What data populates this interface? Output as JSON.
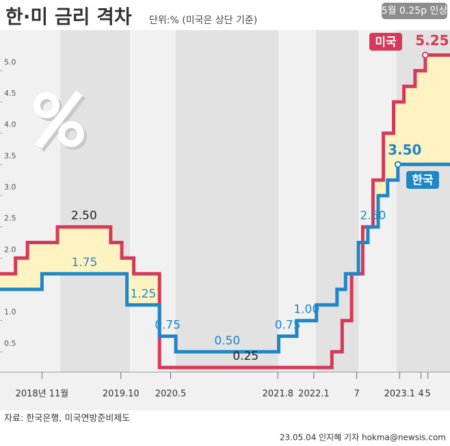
{
  "chart_data": {
    "type": "step",
    "title": "한·미 금리 격차",
    "subtitle": "단위:% (미국은 상단 기준)",
    "annotation": "5월 0.25p 인상",
    "source": "자료: 한국은행, 미국연방준비제도",
    "credit": "23.05.04 인지혜 기자 hokma@newsis.com",
    "xlim": [
      2018.34,
      2023.46
    ],
    "xticks": [
      {
        "value": 2018.83,
        "label": "2018년 11월"
      },
      {
        "value": 2019.75,
        "label": "2019.10"
      },
      {
        "value": 2020.33,
        "label": "2020.5"
      },
      {
        "value": 2021.58,
        "label": "2021.8"
      },
      {
        "value": 2022.0,
        "label": "2022.1"
      },
      {
        "value": 2022.5,
        "label": "7"
      },
      {
        "value": 2023.0,
        "label": "2023.1"
      },
      {
        "value": 2023.25,
        "label": "4"
      },
      {
        "value": 2023.33,
        "label": "5"
      }
    ],
    "ylim": [
      0.175,
      5.65
    ],
    "yticks": [
      0.5,
      {
        "value": 1,
        "label": "1.0"
      },
      1.5,
      {
        "value": 2,
        "label": "2.0"
      },
      2.5,
      {
        "value": 3,
        "label": "3.0"
      },
      3.5,
      {
        "value": 4,
        "label": "4.0"
      },
      4.5,
      {
        "value": 5,
        "label": "5.0"
      }
    ],
    "gap_color": "#fff3c2",
    "series": [
      {
        "name": "미국",
        "color": "#d6395a",
        "x": [
          2018.34,
          2018.52,
          2018.66,
          2019.01,
          2019.63,
          2019.76,
          2019.9,
          2020.2,
          2022.21,
          2022.33,
          2022.44,
          2022.57,
          2022.69,
          2022.81,
          2022.93,
          2023.05,
          2023.18,
          2023.3
        ],
        "values": [
          1.75,
          2.0,
          2.25,
          2.5,
          2.25,
          2.0,
          1.75,
          0.25,
          0.5,
          1.0,
          1.75,
          2.5,
          3.25,
          4.0,
          4.5,
          4.75,
          5.0,
          5.25
        ],
        "value_labels": [
          null,
          null,
          null,
          "2.50",
          null,
          null,
          null,
          "0.25",
          null,
          null,
          null,
          null,
          null,
          null,
          null,
          null,
          null,
          "5.25"
        ]
      },
      {
        "name": "한국",
        "color": "#1f86c8",
        "x": [
          2018.34,
          2018.83,
          2019.82,
          2020.2,
          2020.39,
          2021.59,
          2021.8,
          2022.03,
          2022.27,
          2022.37,
          2022.52,
          2022.63,
          2022.75,
          2022.86,
          2022.98
        ],
        "values": [
          1.5,
          1.75,
          1.25,
          0.75,
          0.5,
          0.75,
          1.0,
          1.25,
          1.5,
          1.75,
          2.25,
          2.5,
          3.0,
          3.25,
          3.5
        ],
        "value_labels": [
          null,
          "1.75",
          "1.25",
          "0.75",
          "0.50",
          "0.75",
          "1.00",
          null,
          null,
          null,
          null,
          "2.50",
          null,
          null,
          "3.50"
        ]
      }
    ]
  }
}
